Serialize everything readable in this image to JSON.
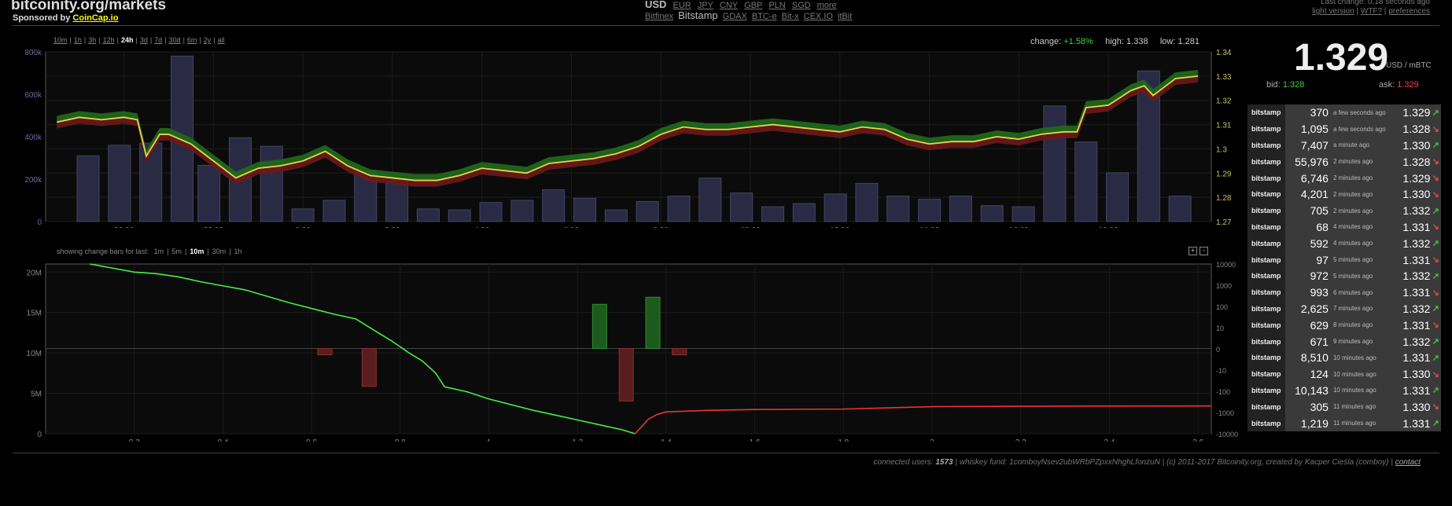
{
  "header": {
    "site_title": "bitcoinity.org/markets",
    "sponsor_prefix": "Sponsored by",
    "sponsor_link": "CoinCap.io",
    "currencies": [
      "USD",
      "EUR",
      "JPY",
      "CNY",
      "GBP",
      "PLN",
      "SGD",
      "more"
    ],
    "active_currency": "USD",
    "exchanges": [
      "Bitfinex",
      "Bitstamp",
      "GDAX",
      "BTC-e",
      "Bit-x",
      "CEX.IO",
      "itBit"
    ],
    "active_exchange": "Bitstamp",
    "last_change": "Last change: 0.18 seconds ago",
    "links": [
      "light version",
      "WTF?",
      "preferences"
    ]
  },
  "time_ranges": [
    "10m",
    "1h",
    "3h",
    "12h",
    "24h",
    "3d",
    "7d",
    "30d",
    "6m",
    "2y",
    "all"
  ],
  "active_time_range": "24h",
  "stats": {
    "change_label": "change:",
    "change_value": "+1.58%",
    "high_label": "high:",
    "high_value": "1.338",
    "low_label": "low:",
    "low_value": "1.281"
  },
  "price_panel": {
    "price": "1.329",
    "unit": "USD / mBTC",
    "bid_label": "bid:",
    "bid_value": "1.328",
    "ask_label": "ask:",
    "ask_value": "1.329"
  },
  "change_bars": {
    "label": "showing change bars for last:",
    "options": [
      "1m",
      "5m",
      "10m",
      "30m",
      "1h"
    ],
    "active": "10m",
    "zoom_in": "+",
    "zoom_out": "-"
  },
  "trades": [
    {
      "exchange": "bitstamp",
      "amount": "370",
      "time": "a few seconds ago",
      "price": "1.329",
      "dir": "up"
    },
    {
      "exchange": "bitstamp",
      "amount": "1,095",
      "time": "a few seconds ago",
      "price": "1.328",
      "dir": "down"
    },
    {
      "exchange": "bitstamp",
      "amount": "7,407",
      "time": "a minute ago",
      "price": "1.330",
      "dir": "up"
    },
    {
      "exchange": "bitstamp",
      "amount": "55,976",
      "time": "2 minutes ago",
      "price": "1.328",
      "dir": "down"
    },
    {
      "exchange": "bitstamp",
      "amount": "6,746",
      "time": "2 minutes ago",
      "price": "1.329",
      "dir": "down"
    },
    {
      "exchange": "bitstamp",
      "amount": "4,201",
      "time": "2 minutes ago",
      "price": "1.330",
      "dir": "down"
    },
    {
      "exchange": "bitstamp",
      "amount": "705",
      "time": "2 minutes ago",
      "price": "1.332",
      "dir": "up"
    },
    {
      "exchange": "bitstamp",
      "amount": "68",
      "time": "4 minutes ago",
      "price": "1.331",
      "dir": "down"
    },
    {
      "exchange": "bitstamp",
      "amount": "592",
      "time": "4 minutes ago",
      "price": "1.332",
      "dir": "up"
    },
    {
      "exchange": "bitstamp",
      "amount": "97",
      "time": "5 minutes ago",
      "price": "1.331",
      "dir": "down"
    },
    {
      "exchange": "bitstamp",
      "amount": "972",
      "time": "5 minutes ago",
      "price": "1.332",
      "dir": "up"
    },
    {
      "exchange": "bitstamp",
      "amount": "993",
      "time": "6 minutes ago",
      "price": "1.331",
      "dir": "down"
    },
    {
      "exchange": "bitstamp",
      "amount": "2,625",
      "time": "7 minutes ago",
      "price": "1.332",
      "dir": "up"
    },
    {
      "exchange": "bitstamp",
      "amount": "629",
      "time": "8 minutes ago",
      "price": "1.331",
      "dir": "down"
    },
    {
      "exchange": "bitstamp",
      "amount": "671",
      "time": "9 minutes ago",
      "price": "1.332",
      "dir": "up"
    },
    {
      "exchange": "bitstamp",
      "amount": "8,510",
      "time": "10 minutes ago",
      "price": "1.331",
      "dir": "up"
    },
    {
      "exchange": "bitstamp",
      "amount": "124",
      "time": "10 minutes ago",
      "price": "1.330",
      "dir": "down"
    },
    {
      "exchange": "bitstamp",
      "amount": "10,143",
      "time": "10 minutes ago",
      "price": "1.331",
      "dir": "up"
    },
    {
      "exchange": "bitstamp",
      "amount": "305",
      "time": "11 minutes ago",
      "price": "1.330",
      "dir": "down"
    },
    {
      "exchange": "bitstamp",
      "amount": "1,219",
      "time": "11 minutes ago",
      "price": "1.331",
      "dir": "up"
    }
  ],
  "footer": {
    "users_label": "connected users:",
    "users_value": "1573",
    "fund": "whiskey fund: 1comboyNsev2ubWRbPZpxxNhghLfonzuN",
    "credits": "(c) 2011-2017 Bitcoinity.org, created by Kacper Cieśla (comboy)",
    "contact": "contact"
  },
  "colors": {
    "price_line": "#e8d44d",
    "up_fill": "#1f6b1a",
    "down_fill": "#6b1a1a",
    "bid_line": "#44ee44",
    "ask_line": "#ee3333",
    "volume_bar": "#2a2a44"
  },
  "chart_data": [
    {
      "type": "line",
      "title": "",
      "y_ticks_left": [
        "0",
        "200k",
        "400k",
        "600k",
        "800k"
      ],
      "y_ticks_right": [
        "1.27",
        "1.28",
        "1.29",
        "1.3",
        "1.31",
        "1.32",
        "1.33",
        "1.34"
      ],
      "x_ticks": [
        "20:00",
        "22:00",
        "0:00",
        "2:00",
        "4:00",
        "6:00",
        "8:00",
        "10:00",
        "12:00",
        "14:00",
        "16:00",
        "18:00"
      ],
      "ylim_volume": [
        0,
        800000
      ],
      "ylim_price": [
        1.27,
        1.34
      ],
      "x_hours": [
        18.5,
        19,
        19.5,
        20,
        20.3,
        20.5,
        20.8,
        21,
        21.5,
        22,
        22.5,
        23,
        23.5,
        24,
        24.5,
        25,
        25.5,
        26,
        26.5,
        27,
        27.5,
        28,
        28.5,
        29,
        29.5,
        30,
        30.5,
        31,
        31.5,
        32,
        32.5,
        33,
        33.5,
        34,
        34.5,
        35,
        35.5,
        36,
        36.5,
        37,
        37.5,
        38,
        38.5,
        39,
        39.5,
        40,
        40.5,
        41,
        41.3,
        41.5,
        42,
        42.5,
        42.8,
        43,
        43.5,
        44
      ],
      "price": [
        1.311,
        1.313,
        1.312,
        1.313,
        1.312,
        1.297,
        1.306,
        1.306,
        1.302,
        1.295,
        1.288,
        1.292,
        1.293,
        1.295,
        1.299,
        1.293,
        1.289,
        1.288,
        1.287,
        1.287,
        1.289,
        1.292,
        1.291,
        1.29,
        1.294,
        1.295,
        1.296,
        1.298,
        1.301,
        1.306,
        1.309,
        1.308,
        1.308,
        1.309,
        1.31,
        1.309,
        1.308,
        1.307,
        1.309,
        1.308,
        1.304,
        1.302,
        1.303,
        1.303,
        1.305,
        1.304,
        1.306,
        1.307,
        1.307,
        1.317,
        1.318,
        1.324,
        1.326,
        1.322,
        1.329,
        1.33
      ],
      "volume_bars": {
        "x_hours": [
          19.2,
          19.9,
          20.6,
          21.3,
          21.9,
          22.6,
          23.3,
          24,
          24.7,
          25.4,
          26.1,
          26.8,
          27.5,
          28.2,
          28.9,
          29.6,
          30.3,
          31,
          31.7,
          32.4,
          33.1,
          33.8,
          34.5,
          35.2,
          35.9,
          36.6,
          37.3,
          38,
          38.7,
          39.4,
          40.1,
          40.8,
          41.5,
          42.2,
          42.9,
          43.6
        ],
        "values": [
          310000,
          360000,
          370000,
          780000,
          265000,
          395000,
          355000,
          60000,
          100000,
          235000,
          195000,
          60000,
          55000,
          90000,
          100000,
          150000,
          110000,
          55000,
          95000,
          120000,
          205000,
          135000,
          70000,
          85000,
          130000,
          180000,
          120000,
          105000,
          120000,
          75000,
          70000,
          545000,
          375000,
          230000,
          710000,
          120000
        ]
      }
    },
    {
      "type": "line",
      "title": "",
      "x_ticks": [
        "0.2",
        "0.4",
        "0.6",
        "0.8",
        "1",
        "1.2",
        "1.4",
        "1.6",
        "1.8",
        "2",
        "2.2",
        "2.4",
        "2.6"
      ],
      "y_ticks_left": [
        "0",
        "5M",
        "10M",
        "15M",
        "20M"
      ],
      "y_ticks_right": [
        "10000",
        "1000",
        "100",
        "10",
        "0",
        "-10",
        "-100",
        "-1000",
        "-10000"
      ],
      "xlim": [
        0,
        2.63
      ],
      "ylim": [
        0,
        21000000
      ],
      "bids": {
        "x": [
          0.1,
          0.15,
          0.2,
          0.25,
          0.3,
          0.35,
          0.4,
          0.45,
          0.5,
          0.55,
          0.6,
          0.65,
          0.7,
          0.75,
          0.78,
          0.82,
          0.85,
          0.88,
          0.9,
          0.95,
          1.0,
          1.05,
          1.1,
          1.15,
          1.2,
          1.25,
          1.3,
          1.33
        ],
        "y": [
          21000000,
          20500000,
          20000000,
          19800000,
          19400000,
          18800000,
          18300000,
          17800000,
          17000000,
          16200000,
          15500000,
          14800000,
          14200000,
          12500000,
          11500000,
          10000000,
          9000000,
          7500000,
          5800000,
          5200000,
          4300000,
          3600000,
          2900000,
          2300000,
          1700000,
          1100000,
          500000,
          0
        ]
      },
      "asks": {
        "x": [
          1.33,
          1.36,
          1.38,
          1.4,
          1.5,
          1.6,
          1.8,
          2.0,
          2.2,
          2.4,
          2.6,
          2.63
        ],
        "y": [
          0,
          1800000,
          2400000,
          2700000,
          2900000,
          3000000,
          3050000,
          3350000,
          3400000,
          3420000,
          3430000,
          3430000
        ]
      },
      "change_bars": {
        "x": [
          0.63,
          0.73,
          1.25,
          1.31,
          1.37,
          1.43
        ],
        "values": [
          -1,
          -60,
          120,
          -300,
          260,
          -1
        ]
      }
    }
  ]
}
